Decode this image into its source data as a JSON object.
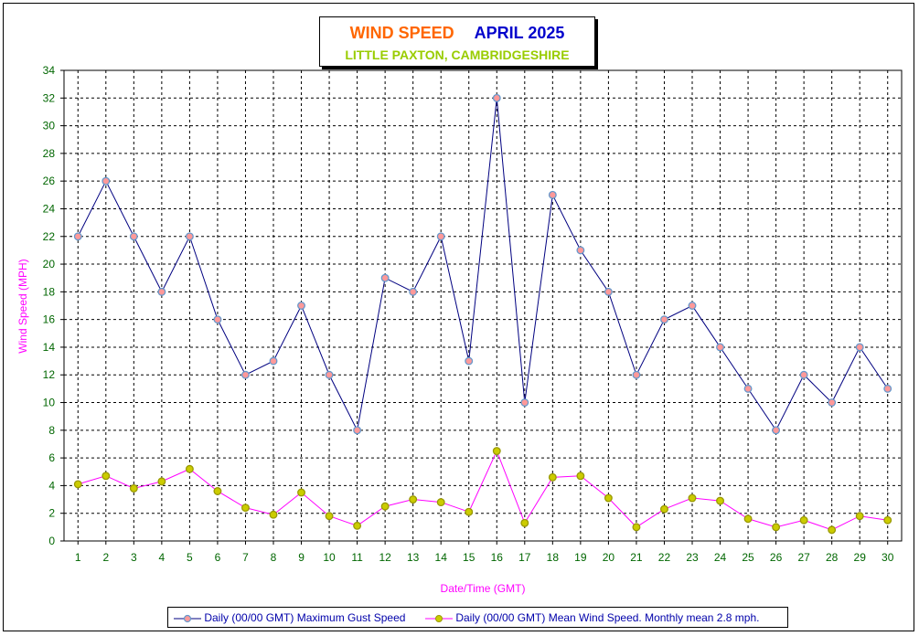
{
  "title": {
    "main": "WIND SPEED",
    "period": "APRIL 2025",
    "location": "LITTLE PAXTON, CAMBRIDGESHIRE"
  },
  "colors": {
    "title_main": "#ff6600",
    "title_period": "#0000cc",
    "location": "#99cc00",
    "gust_line": "#000080",
    "gust_marker": "#ff9999",
    "gust_marker_edge": "#6699cc",
    "mean_line": "#ff00ff",
    "mean_marker": "#cccc00",
    "mean_marker_edge": "#999900",
    "grid": "#006600",
    "tick_labels": "#006600",
    "axis_titles": "#ff00ff"
  },
  "chart_data": {
    "type": "line",
    "xlabel": "Date/Time (GMT)",
    "ylabel": "Wind Speed (MPH)",
    "ylim": [
      0,
      34
    ],
    "yticks": [
      0,
      2,
      4,
      6,
      8,
      10,
      12,
      14,
      16,
      18,
      20,
      22,
      24,
      26,
      28,
      30,
      32,
      34
    ],
    "categories": [
      "1",
      "2",
      "3",
      "4",
      "5",
      "6",
      "7",
      "8",
      "9",
      "10",
      "11",
      "12",
      "13",
      "14",
      "15",
      "16",
      "17",
      "18",
      "19",
      "20",
      "21",
      "22",
      "23",
      "24",
      "25",
      "26",
      "27",
      "28",
      "29",
      "30"
    ],
    "grid": true,
    "legend_position": "bottom",
    "series": [
      {
        "name": "Daily (00/00 GMT) Maximum Gust Speed",
        "values": [
          22,
          26,
          22,
          18,
          22,
          16,
          12,
          13,
          17,
          12,
          8,
          19,
          18,
          22,
          13,
          32,
          10,
          25,
          21,
          18,
          12,
          16,
          17,
          14,
          11,
          8,
          12,
          10,
          14,
          11
        ]
      },
      {
        "name": "Daily (00/00 GMT) Mean Wind Speed. Monthly mean 2.8 mph.",
        "values": [
          4.1,
          4.7,
          3.8,
          4.3,
          5.2,
          3.6,
          2.4,
          1.9,
          3.5,
          1.8,
          1.1,
          2.5,
          3.0,
          2.8,
          2.1,
          6.5,
          1.3,
          4.6,
          4.7,
          3.1,
          1.0,
          2.3,
          3.1,
          2.9,
          1.6,
          1.0,
          1.5,
          0.8,
          1.8,
          1.5
        ]
      }
    ]
  }
}
